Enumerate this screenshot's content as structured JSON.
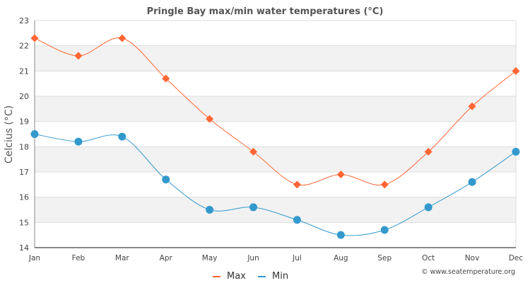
{
  "chart_data": {
    "type": "line",
    "title": "Pringle Bay max/min water temperatures (°C)",
    "xlabel": "",
    "ylabel": "Celcius (°C)",
    "categories": [
      "Jan",
      "Feb",
      "Mar",
      "Apr",
      "May",
      "Jun",
      "Jul",
      "Aug",
      "Sep",
      "Oct",
      "Nov",
      "Dec"
    ],
    "ylim": [
      14,
      23
    ],
    "yticks": [
      14,
      15,
      16,
      17,
      18,
      19,
      20,
      21,
      22,
      23
    ],
    "grid": true,
    "legend": "bottom-center",
    "series": [
      {
        "name": "Max",
        "color": "#ff6633",
        "marker": "diamond",
        "values": [
          22.3,
          21.6,
          22.3,
          20.7,
          19.1,
          17.8,
          16.5,
          16.9,
          16.5,
          17.8,
          19.6,
          21.0
        ]
      },
      {
        "name": "Min",
        "color": "#3399cc",
        "marker": "circle",
        "values": [
          18.5,
          18.2,
          18.4,
          16.7,
          15.5,
          15.6,
          15.1,
          14.5,
          14.7,
          15.6,
          16.6,
          17.8
        ]
      }
    ],
    "credit": "© www.seatemperature.org"
  }
}
